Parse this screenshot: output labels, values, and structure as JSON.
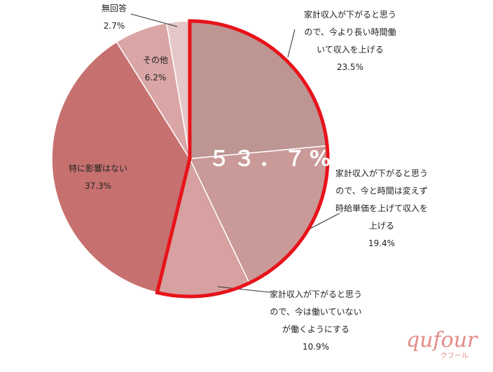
{
  "chart_data": {
    "type": "pie",
    "title": "",
    "slices": [
      {
        "label": [
          "家計収入が下がると思う",
          "ので、今より長い時間働",
          "いて収入を上げる"
        ],
        "value": 23.5,
        "value_label": "23.5%",
        "color": "#bd9593"
      },
      {
        "label": [
          "家計収入が下がると思う",
          "ので、今と時間は変えず",
          "時給単価を上げて収入を",
          "上げる"
        ],
        "value": 19.4,
        "value_label": "19.4%",
        "color": "#ca9a98"
      },
      {
        "label": [
          "家計収入が下がると思う",
          "ので、今は働いていない",
          "が働くようにする"
        ],
        "value": 10.9,
        "value_label": "10.9%",
        "color": "#d6a1a0"
      },
      {
        "label": [
          "特に影響はない"
        ],
        "value": 37.3,
        "value_label": "37.3%",
        "color": "#c6716f"
      },
      {
        "label": [
          "その他"
        ],
        "value": 6.2,
        "value_label": "6.2%",
        "color": "#d9a6a5"
      },
      {
        "label": [
          "無回答"
        ],
        "value": 2.7,
        "value_label": "2.7%",
        "color": "#e6c7c7"
      }
    ],
    "highlight": {
      "text": "５３．７%",
      "slices": [
        0,
        1,
        2
      ],
      "outline_color": "#e8131b"
    }
  },
  "logo": {
    "main": "qufour",
    "sub": "クフール"
  }
}
